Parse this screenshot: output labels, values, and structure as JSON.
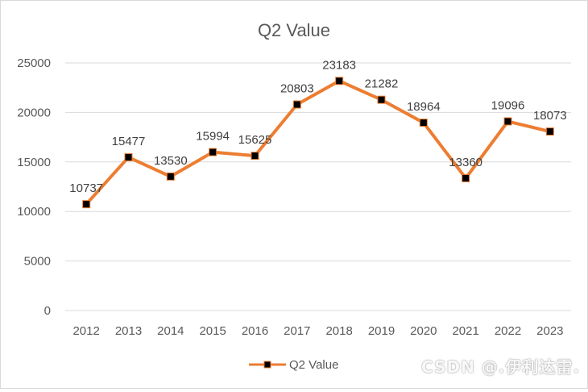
{
  "chart_data": {
    "type": "line",
    "title": "Q2 Value",
    "xlabel": "",
    "ylabel": "",
    "categories": [
      "2012",
      "2013",
      "2014",
      "2015",
      "2016",
      "2017",
      "2018",
      "2019",
      "2020",
      "2021",
      "2022",
      "2023"
    ],
    "series": [
      {
        "name": "Q2 Value",
        "values": [
          10737,
          15477,
          13530,
          15994,
          15625,
          20803,
          23183,
          21282,
          18964,
          13360,
          19096,
          18073
        ],
        "color": "#ED7D31",
        "marker_color": "#000000"
      }
    ],
    "ylim": [
      0,
      25000
    ],
    "yticks": [
      "0",
      "5000",
      "10000",
      "15000",
      "20000",
      "25000"
    ],
    "grid": true,
    "legend_position": "bottom",
    "data_labels": true
  },
  "watermark": "CSDN @.伊利达雷."
}
